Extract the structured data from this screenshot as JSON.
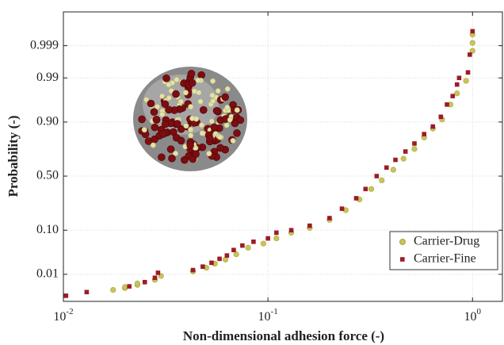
{
  "chart_data": {
    "type": "scatter",
    "x_label": "Non-dimensional adhesion force (-)",
    "y_label": "Probability (-)",
    "xscale": "log",
    "yscale": "probability",
    "xlim": [
      0.01,
      1.4
    ],
    "ylim": [
      0.0015,
      0.99995
    ],
    "xticks": [
      {
        "value": 0.01,
        "label": "10",
        "exponent": "-2"
      },
      {
        "value": 0.1,
        "label": "10",
        "exponent": "-1"
      },
      {
        "value": 1,
        "label": "10",
        "exponent": "0"
      }
    ],
    "yticks": [
      0.01,
      {
        "value": 0.1,
        "label": "0.10"
      },
      {
        "value": 0.5,
        "label": "0.50"
      },
      {
        "value": 0.9,
        "label": "0.90"
      },
      0.99,
      0.999
    ],
    "grid": true,
    "legend": "lower right",
    "series": [
      {
        "name": "Carrier-Drug",
        "color": "#c8c45a",
        "marker": "circle",
        "x": [
          0.0175,
          0.02,
          0.02,
          0.023,
          0.023,
          0.028,
          0.03,
          0.043,
          0.05,
          0.055,
          0.062,
          0.07,
          0.08,
          0.095,
          0.11,
          0.13,
          0.16,
          0.2,
          0.24,
          0.28,
          0.32,
          0.36,
          0.41,
          0.46,
          0.52,
          0.58,
          0.64,
          0.71,
          0.78,
          0.84,
          0.93,
          1.0,
          1.0,
          1.0
        ],
        "y": [
          0.0035,
          0.004,
          0.0043,
          0.005,
          0.0055,
          0.007,
          0.009,
          0.012,
          0.015,
          0.019,
          0.024,
          0.032,
          0.045,
          0.055,
          0.07,
          0.09,
          0.11,
          0.15,
          0.21,
          0.29,
          0.38,
          0.46,
          0.56,
          0.66,
          0.74,
          0.82,
          0.87,
          0.91,
          0.955,
          0.975,
          0.988,
          0.9985,
          0.9992,
          0.9996
        ]
      },
      {
        "name": "Carrier-Fine",
        "color": "#9b1c26",
        "marker": "square",
        "x": [
          0.0103,
          0.013,
          0.021,
          0.025,
          0.028,
          0.029,
          0.043,
          0.048,
          0.053,
          0.058,
          0.063,
          0.068,
          0.075,
          0.085,
          0.1,
          0.11,
          0.13,
          0.16,
          0.2,
          0.23,
          0.27,
          0.3,
          0.34,
          0.38,
          0.42,
          0.47,
          0.52,
          0.58,
          0.64,
          0.7,
          0.75,
          0.8,
          0.84,
          0.86,
          0.95,
          0.97,
          1.0
        ],
        "y": [
          0.0023,
          0.003,
          0.0045,
          0.006,
          0.008,
          0.011,
          0.013,
          0.016,
          0.02,
          0.025,
          0.03,
          0.04,
          0.05,
          0.06,
          0.07,
          0.09,
          0.1,
          0.12,
          0.16,
          0.22,
          0.3,
          0.38,
          0.5,
          0.58,
          0.65,
          0.72,
          0.78,
          0.84,
          0.88,
          0.92,
          0.955,
          0.971,
          0.985,
          0.99,
          0.993,
          0.998,
          0.9997
        ]
      }
    ]
  }
}
